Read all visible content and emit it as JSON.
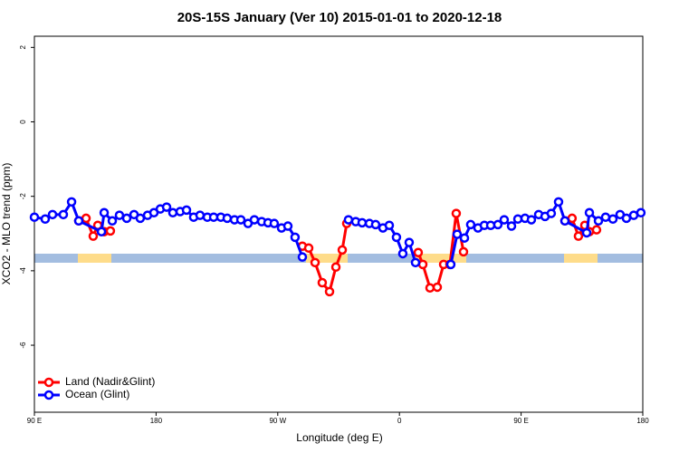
{
  "chart_data": {
    "type": "line",
    "title": "20S-15S January (Ver 10)   2015-01-01 to 2020-12-18",
    "x_label": "Longitude (deg E)",
    "y_label": "XCO2 - MLO trend (ppm)",
    "xlim": [
      90,
      540
    ],
    "ylim": [
      -7.8,
      2.3
    ],
    "xticks": [
      {
        "value": 90,
        "label": "90 E"
      },
      180,
      {
        "value": 270,
        "label": "90 W"
      },
      {
        "value": 360,
        "label": "0"
      },
      {
        "value": 450,
        "label": "90 E"
      },
      {
        "value": 540,
        "label": "180"
      }
    ],
    "yticks": [
      2,
      0,
      -2,
      -4,
      -6
    ],
    "legend": "bottomleft",
    "series": [
      {
        "name": "Land (Nadir&Glint)",
        "color": "#ff0000",
        "x": [
          122.8,
          128.2,
          133.5,
          136.9,
          141.6,
          146.2,
          null,
          288.2,
          292.9,
          297.6,
          302.9,
          308.3,
          313.0,
          317.7,
          321.0,
          null,
          373.9,
          377.3,
          382.6,
          388.0,
          392.7,
          397.3,
          402.0,
          407.4,
          null,
          482.4,
          487.7,
          492.4,
          497.1,
          500.5,
          505.8
        ],
        "values": [
          -2.66,
          -2.59,
          -3.07,
          -2.78,
          -2.95,
          -2.93,
          null,
          -3.34,
          -3.39,
          -3.78,
          -4.32,
          -4.56,
          -3.9,
          -3.44,
          -2.73,
          null,
          -3.51,
          -3.83,
          -4.46,
          -4.44,
          -3.83,
          -3.83,
          -2.46,
          -3.49,
          null,
          -2.66,
          -2.59,
          -3.07,
          -2.78,
          -2.95,
          -2.9
        ]
      },
      {
        "name": "Ocean (Glint)",
        "color": "#0000ff",
        "x": [
          90,
          98.0,
          103.4,
          111.4,
          117.5,
          122.8,
          139.6,
          141.6,
          147.6,
          152.9,
          158.3,
          163.7,
          168.3,
          173.7,
          178.4,
          183.1,
          187.8,
          192.4,
          197.8,
          202.5,
          207.8,
          212.5,
          217.9,
          222.6,
          227.9,
          232.6,
          238.0,
          242.7,
          248.0,
          252.7,
          258.1,
          262.8,
          267.4,
          272.8,
          277.5,
          282.8,
          288.2,
          null,
          322.3,
          327.7,
          332.4,
          337.8,
          342.4,
          347.8,
          352.5,
          357.8,
          362.5,
          367.2,
          371.9,
          null,
          398.0,
          402.7,
          408.1,
          412.7,
          418.1,
          422.8,
          427.5,
          432.8,
          437.5,
          442.9,
          447.6,
          452.9,
          457.6,
          463.0,
          467.7,
          472.3,
          477.7,
          482.4,
          498.5,
          500.5,
          507.2,
          512.5,
          517.9,
          523.2,
          527.9,
          533.3,
          538.6
        ],
        "values": [
          -2.56,
          -2.61,
          -2.49,
          -2.49,
          -2.15,
          -2.66,
          -2.95,
          -2.44,
          -2.66,
          -2.51,
          -2.59,
          -2.49,
          -2.59,
          -2.51,
          -2.44,
          -2.34,
          -2.29,
          -2.44,
          -2.41,
          -2.37,
          -2.56,
          -2.51,
          -2.56,
          -2.56,
          -2.56,
          -2.59,
          -2.63,
          -2.63,
          -2.73,
          -2.63,
          -2.68,
          -2.71,
          -2.73,
          -2.85,
          -2.8,
          -3.1,
          -3.63,
          null,
          -2.63,
          -2.68,
          -2.71,
          -2.73,
          -2.76,
          -2.85,
          -2.78,
          -3.1,
          -3.54,
          -3.24,
          -3.78,
          null,
          -3.83,
          -3.02,
          -3.12,
          -2.76,
          -2.85,
          -2.78,
          -2.78,
          -2.76,
          -2.63,
          -2.8,
          -2.61,
          -2.59,
          -2.63,
          -2.49,
          -2.54,
          -2.46,
          -2.15,
          -2.66,
          -2.98,
          -2.44,
          -2.66,
          -2.56,
          -2.61,
          -2.49,
          -2.59,
          -2.51,
          -2.44
        ]
      }
    ]
  }
}
